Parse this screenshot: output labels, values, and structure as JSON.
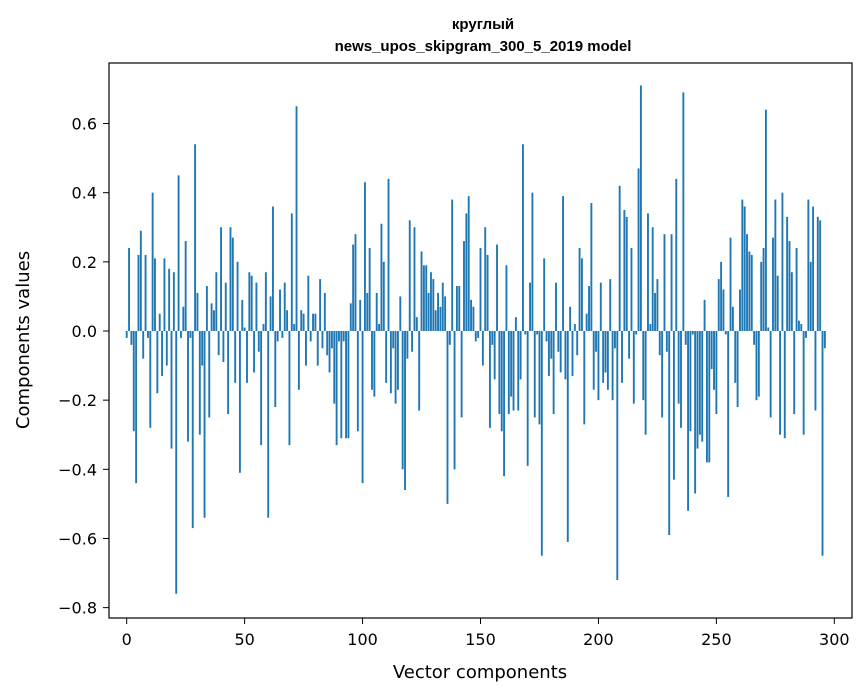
{
  "chart_data": {
    "type": "bar",
    "title": [
      "круглый",
      "news_upos_skipgram_300_5_2019 model"
    ],
    "xlabel": "Vector components",
    "ylabel": "Components values",
    "xlim": [
      -7.5,
      307.5
    ],
    "ylim": [
      -0.83,
      0.775
    ],
    "xticks": [
      0,
      50,
      100,
      150,
      200,
      250,
      300
    ],
    "xtick_labels": [
      "0",
      "50",
      "100",
      "150",
      "200",
      "250",
      "300"
    ],
    "yticks": [
      -0.8,
      -0.6,
      -0.4,
      -0.2,
      0.0,
      0.2,
      0.4,
      0.6
    ],
    "ytick_labels": [
      "−0.8",
      "−0.6",
      "−0.4",
      "−0.2",
      "0.0",
      "0.2",
      "0.4",
      "0.6"
    ],
    "grid": false,
    "bar_color": "#1f77b4",
    "values": [
      -0.02,
      0.24,
      -0.04,
      -0.29,
      -0.44,
      0.22,
      0.29,
      -0.08,
      0.22,
      -0.02,
      -0.28,
      0.4,
      0.21,
      -0.18,
      0.05,
      -0.13,
      0.21,
      -0.1,
      0.18,
      -0.34,
      0.17,
      -0.76,
      0.45,
      -0.02,
      0.07,
      0.26,
      -0.32,
      -0.02,
      -0.57,
      0.54,
      0.11,
      -0.3,
      -0.1,
      -0.54,
      0.13,
      -0.25,
      0.08,
      0.06,
      0.17,
      -0.07,
      0.3,
      -0.09,
      0.14,
      -0.24,
      0.3,
      0.27,
      -0.15,
      0.2,
      -0.41,
      0.09,
      0.01,
      -0.15,
      0.17,
      0.16,
      -0.12,
      0.14,
      -0.06,
      -0.33,
      0.02,
      0.17,
      -0.54,
      0.1,
      0.36,
      -0.22,
      -0.03,
      0.12,
      -0.02,
      0.14,
      0.06,
      -0.33,
      0.34,
      0.02,
      0.65,
      -0.17,
      0.06,
      0.05,
      -0.1,
      0.16,
      -0.03,
      0.05,
      0.05,
      -0.1,
      0.15,
      -0.05,
      0.11,
      -0.07,
      -0.12,
      -0.05,
      -0.21,
      -0.33,
      -0.03,
      -0.31,
      -0.03,
      -0.31,
      -0.31,
      0.08,
      0.25,
      0.28,
      -0.29,
      0.09,
      -0.44,
      0.43,
      0.11,
      0.24,
      -0.17,
      -0.19,
      0.11,
      0.02,
      0.31,
      0.2,
      -0.15,
      0.44,
      -0.18,
      -0.05,
      -0.21,
      -0.17,
      0.1,
      -0.4,
      -0.46,
      -0.08,
      0.32,
      -0.06,
      0.3,
      0.04,
      -0.23,
      0.23,
      0.19,
      0.19,
      0.11,
      0.17,
      0.15,
      0.06,
      0.11,
      0.07,
      0.14,
      0.1,
      -0.5,
      -0.04,
      0.38,
      -0.4,
      0.13,
      0.13,
      -0.25,
      0.26,
      0.34,
      0.39,
      0.09,
      0.07,
      -0.03,
      -0.02,
      0.24,
      -0.1,
      0.3,
      0.22,
      -0.28,
      -0.04,
      -0.14,
      0.25,
      -0.24,
      -0.29,
      -0.42,
      0.19,
      -0.24,
      -0.19,
      -0.23,
      0.04,
      -0.23,
      -0.14,
      0.54,
      -0.01,
      -0.39,
      0.14,
      0.4,
      -0.25,
      -0.01,
      -0.27,
      -0.65,
      0.21,
      -0.03,
      -0.13,
      -0.08,
      -0.24,
      0.14,
      -0.06,
      -0.12,
      0.39,
      -0.14,
      -0.61,
      0.07,
      -0.13,
      0.02,
      -0.07,
      0.24,
      0.21,
      -0.27,
      0.05,
      0.13,
      0.37,
      -0.17,
      -0.06,
      -0.2,
      0.14,
      -0.15,
      -0.12,
      -0.17,
      0.15,
      -0.2,
      -0.05,
      -0.72,
      0.42,
      -0.15,
      0.35,
      0.33,
      -0.08,
      0.24,
      -0.21,
      -0.01,
      0.47,
      0.71,
      -0.2,
      -0.3,
      0.34,
      0.02,
      0.3,
      0.11,
      0.15,
      -0.07,
      -0.25,
      0.28,
      -0.06,
      -0.59,
      0.28,
      -0.43,
      0.44,
      -0.21,
      -0.28,
      0.69,
      -0.04,
      -0.52,
      -0.29,
      -0.01,
      -0.47,
      -0.34,
      -0.3,
      -0.32,
      0.09,
      -0.38,
      -0.38,
      -0.11,
      -0.17,
      -0.24,
      0.15,
      0.2,
      0.12,
      -0.01,
      -0.48,
      0.27,
      0.07,
      -0.15,
      -0.22,
      0.12,
      0.38,
      0.36,
      0.28,
      0.23,
      0.22,
      -0.04,
      -0.2,
      -0.19,
      0.2,
      0.24,
      0.64,
      0.01,
      -0.25,
      0.27,
      0.38,
      0.16,
      -0.3,
      0.4,
      -0.31,
      0.33,
      0.26,
      0.17,
      -0.24,
      0.24,
      0.03,
      0.02,
      -0.3,
      -0.02,
      0.38,
      0.2,
      0.36,
      -0.23,
      0.33,
      0.32,
      -0.65,
      -0.05
    ]
  }
}
